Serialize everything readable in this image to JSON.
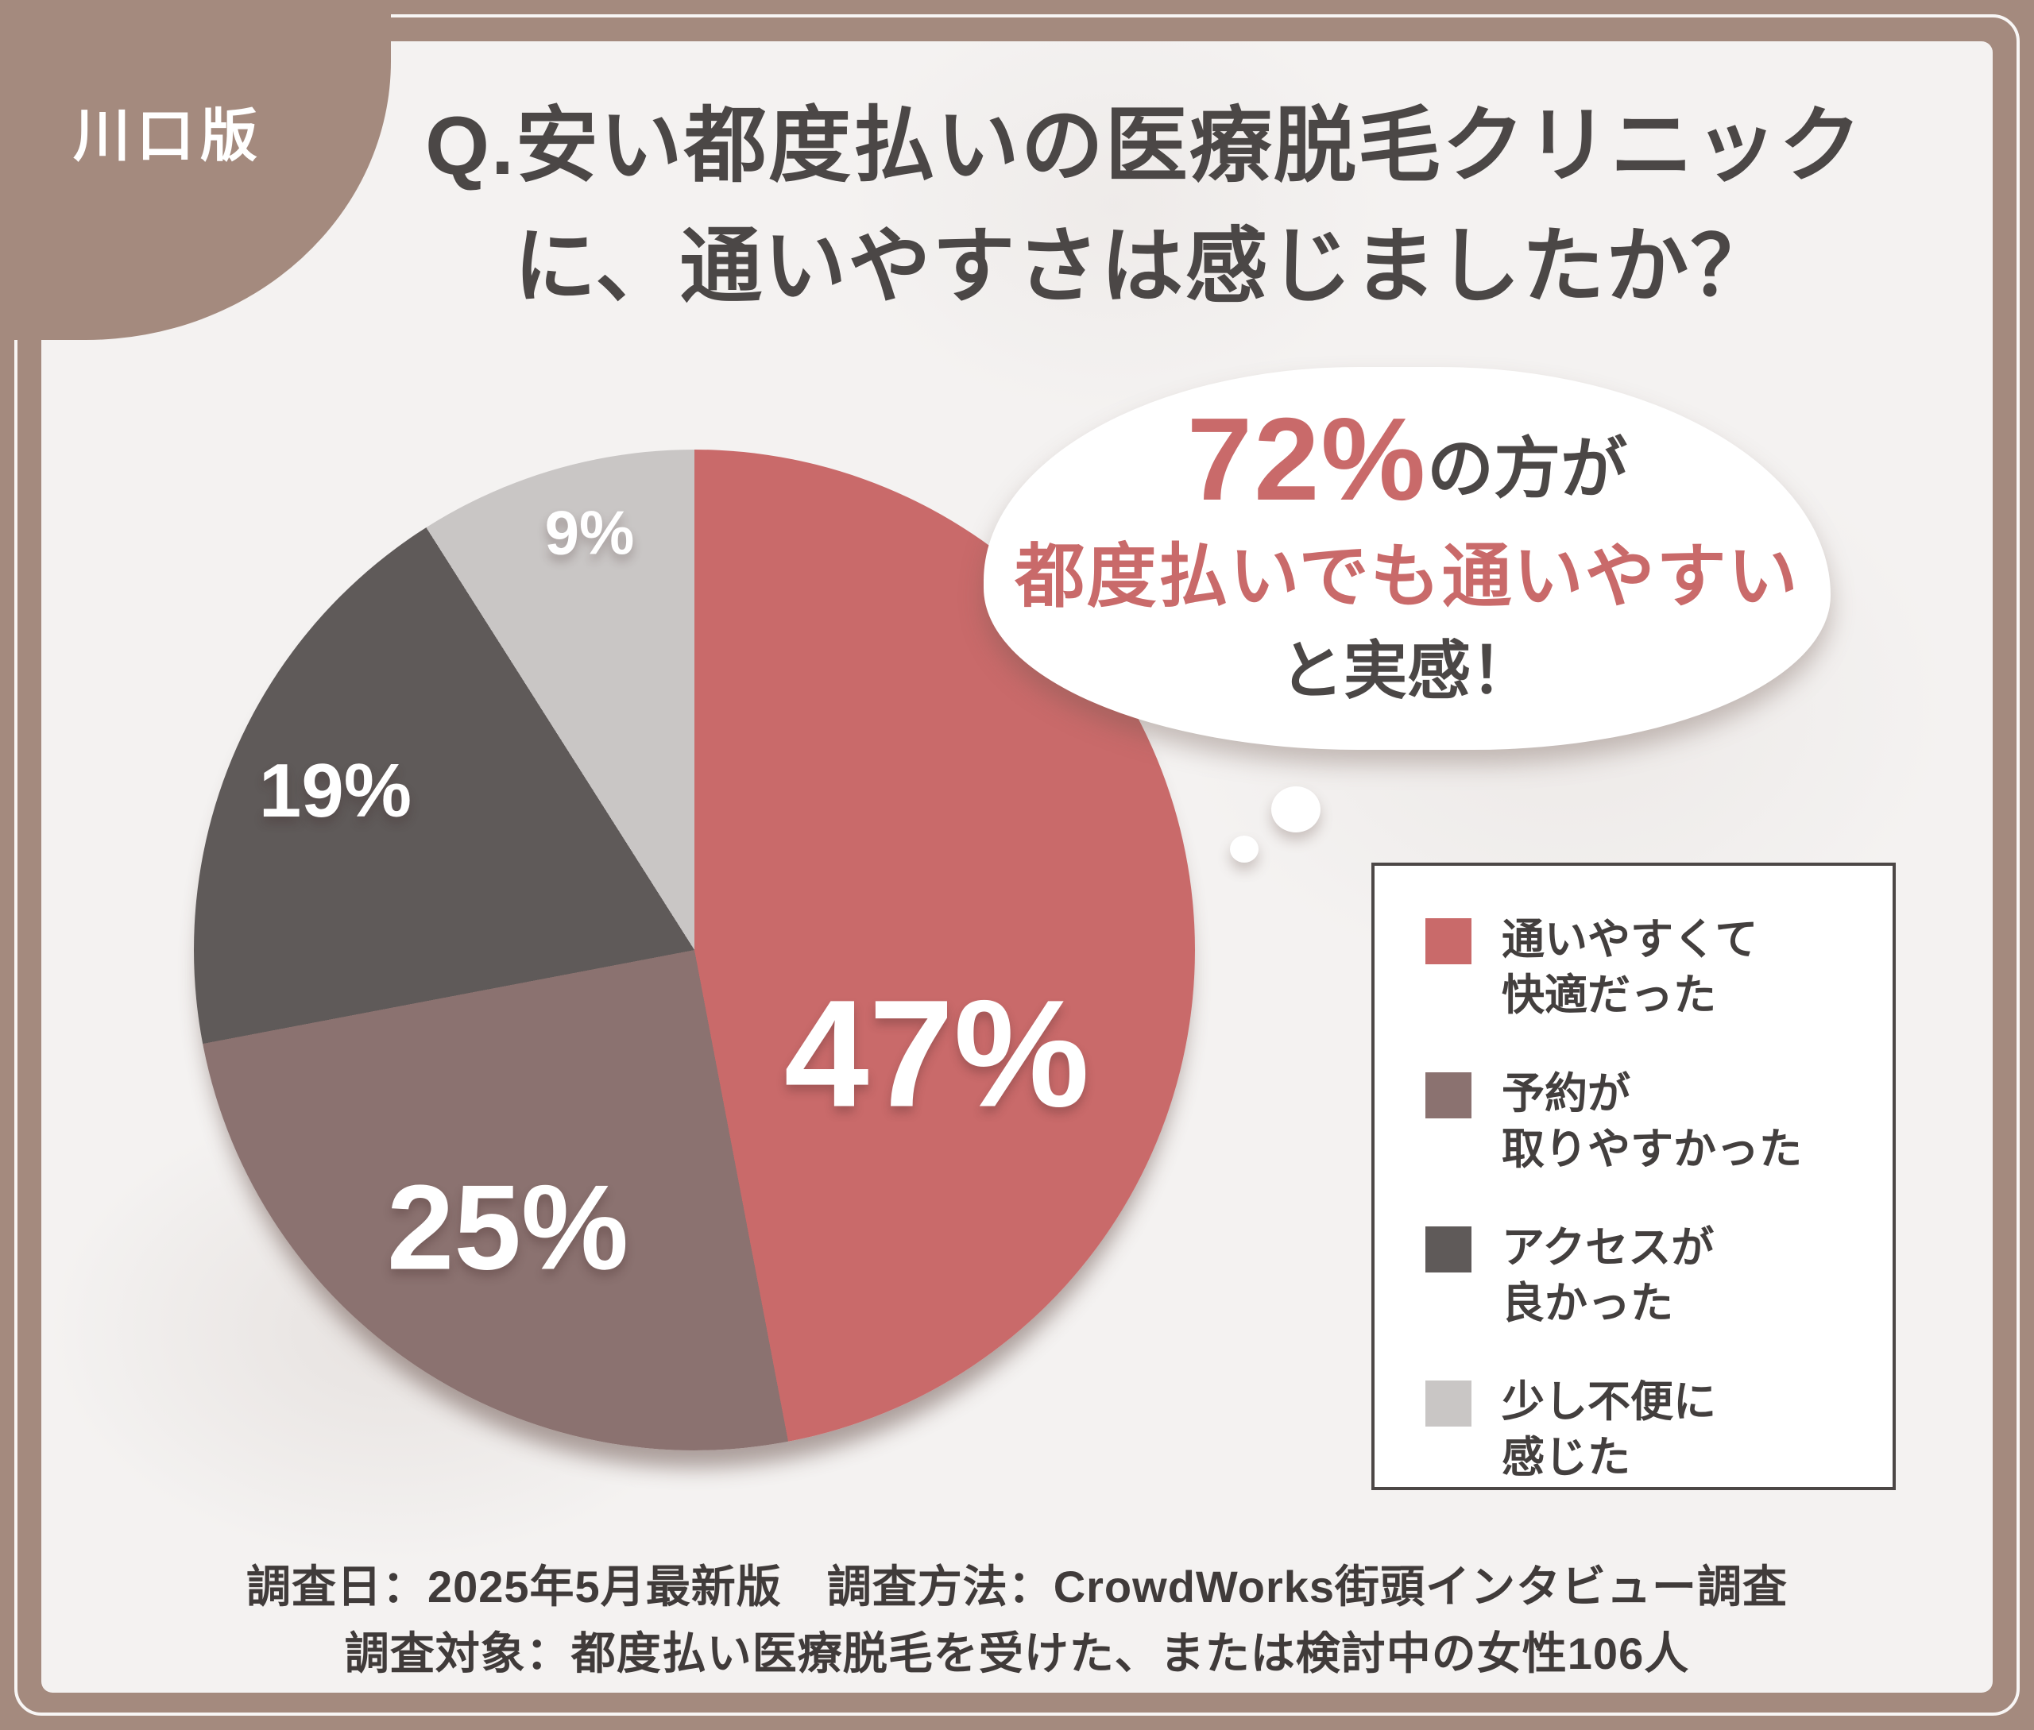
{
  "badge": {
    "label": "川口版"
  },
  "title": {
    "line1": "Q.安い都度払いの医療脱毛クリニック",
    "line2": "に、通いやすさは感じましたか？"
  },
  "bubble": {
    "pct": "72%",
    "after_pct": "の方が",
    "line2": "都度払いでも通いやすい",
    "line3": "と実感！"
  },
  "chart_data": {
    "type": "pie",
    "title": "安い都度払いの医療脱毛クリニックに、通いやすさは感じましたか？",
    "direction": "clockwise",
    "start_angle": "top",
    "legend_position": "right",
    "slices": [
      {
        "label": "通いやすくて快適だった",
        "value": 47,
        "display": "47%",
        "color": "#c96a6a"
      },
      {
        "label": "予約が取りやすかった",
        "value": 25,
        "display": "25%",
        "color": "#8b7270"
      },
      {
        "label": "アクセスが良かった",
        "value": 19,
        "display": "19%",
        "color": "#5f5a59"
      },
      {
        "label": "少し不便に感じた",
        "value": 9,
        "display": "9%",
        "color": "#c9c6c5"
      }
    ]
  },
  "legend": {
    "items": [
      {
        "line1": "通いやすくて",
        "line2": "快適だった"
      },
      {
        "line1": "予約が",
        "line2": "取りやすかった"
      },
      {
        "line1": "アクセスが",
        "line2": "良かった"
      },
      {
        "line1": "少し不便に",
        "line2": "感じた"
      }
    ]
  },
  "footer": {
    "line1": "調査日：2025年5月最新版　調査方法：CrowdWorks街頭インタビュー調査",
    "line2": "調査対象：都度払い医療脱毛を受けた、または検討中の女性106人"
  },
  "colors": {
    "frame": "#a48a7e",
    "accent_red": "#c96a6a",
    "text_dark": "#4b4746"
  }
}
